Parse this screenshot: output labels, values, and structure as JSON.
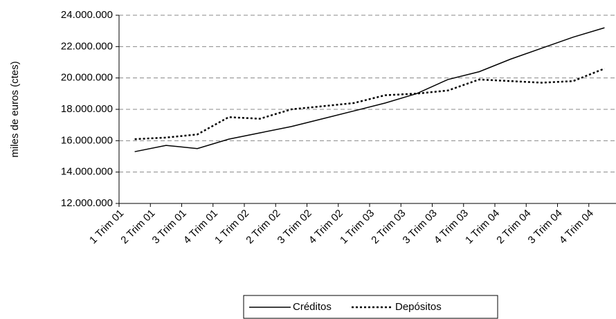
{
  "chart_data": {
    "type": "line",
    "y_label": "miles de euros (ctes)",
    "categories": [
      "1 Trim 01",
      "2 Trim 01",
      "3 Trim 01",
      "4 Trim 01",
      "1 Trim 02",
      "2 Trim 02",
      "3 Trim 02",
      "4 Trim 02",
      "1 Trim 03",
      "2 Trim 03",
      "3 Trim 03",
      "4 Trim 03",
      "1 Trim 04",
      "2 Trim 04",
      "3 Trim 04",
      "4 Trim 04"
    ],
    "series": [
      {
        "name": "Créditos",
        "color": "#000000",
        "dash": "solid",
        "values": [
          15300000,
          15700000,
          15500000,
          16100000,
          16500000,
          16900000,
          17400000,
          17900000,
          18400000,
          19000000,
          19900000,
          20400000,
          21200000,
          21900000,
          22600000,
          23200000
        ]
      },
      {
        "name": "Depósitos",
        "color": "#000000",
        "dash": "dotted",
        "values": [
          16100000,
          16200000,
          16400000,
          17500000,
          17400000,
          18000000,
          18200000,
          18400000,
          18900000,
          19000000,
          19200000,
          19900000,
          19800000,
          19700000,
          19800000,
          20600000
        ]
      }
    ],
    "ylim": [
      12000000,
      24000000
    ],
    "yticks": [
      {
        "value": 12000000,
        "label": "12.000.000"
      },
      {
        "value": 14000000,
        "label": "14.000.000"
      },
      {
        "value": 16000000,
        "label": "16.000.000"
      },
      {
        "value": 18000000,
        "label": "18.000.000"
      },
      {
        "value": 20000000,
        "label": "20.000.000"
      },
      {
        "value": 22000000,
        "label": "22.000.000"
      },
      {
        "value": 24000000,
        "label": "24.000.000"
      }
    ],
    "grid": true,
    "legend": "bottom"
  }
}
